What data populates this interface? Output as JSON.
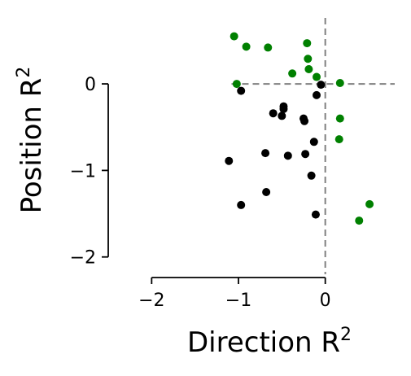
{
  "chart_data": {
    "type": "scatter",
    "xlabel": "Direction R",
    "ylabel": "Position R",
    "label_superscript": "2",
    "xlim": [
      -2.2,
      0.8
    ],
    "ylim": [
      -2.2,
      0.8
    ],
    "x_spine_range": [
      -2,
      0
    ],
    "y_spine_range": [
      -2,
      0
    ],
    "x_ticks": [
      -2,
      -1,
      0
    ],
    "y_ticks": [
      -2,
      -1,
      0
    ],
    "x_tick_labels": [
      "−2",
      "−1",
      "0"
    ],
    "y_tick_labels": [
      "−2",
      "−1",
      "0"
    ],
    "reference_lines": {
      "x": 0,
      "y": 0,
      "color": "#808080",
      "style": "dashed"
    },
    "grid": false,
    "legend": "none",
    "series": [
      {
        "color": "#008000",
        "points": [
          [
            -1.05,
            0.55
          ],
          [
            -0.91,
            0.43
          ],
          [
            -0.66,
            0.42
          ],
          [
            -0.21,
            0.47
          ],
          [
            -0.2,
            0.29
          ],
          [
            -0.19,
            0.17
          ],
          [
            -0.38,
            0.12
          ],
          [
            -0.1,
            0.08
          ],
          [
            -1.02,
            0.0
          ],
          [
            0.17,
            0.01
          ],
          [
            0.17,
            -0.4
          ],
          [
            0.16,
            -0.64
          ],
          [
            0.51,
            -1.39
          ],
          [
            0.39,
            -1.58
          ]
        ]
      },
      {
        "color": "#000000",
        "points": [
          [
            -0.05,
            -0.01
          ],
          [
            -0.97,
            -0.08
          ],
          [
            -0.1,
            -0.13
          ],
          [
            -0.48,
            -0.26
          ],
          [
            -0.48,
            -0.29
          ],
          [
            -0.6,
            -0.34
          ],
          [
            -0.5,
            -0.37
          ],
          [
            -0.25,
            -0.4
          ],
          [
            -0.24,
            -0.43
          ],
          [
            -0.13,
            -0.67
          ],
          [
            -0.69,
            -0.8
          ],
          [
            -0.43,
            -0.83
          ],
          [
            -0.23,
            -0.81
          ],
          [
            -1.11,
            -0.89
          ],
          [
            -0.16,
            -1.06
          ],
          [
            -0.68,
            -1.25
          ],
          [
            -0.97,
            -1.4
          ],
          [
            -0.11,
            -1.51
          ]
        ]
      }
    ]
  }
}
